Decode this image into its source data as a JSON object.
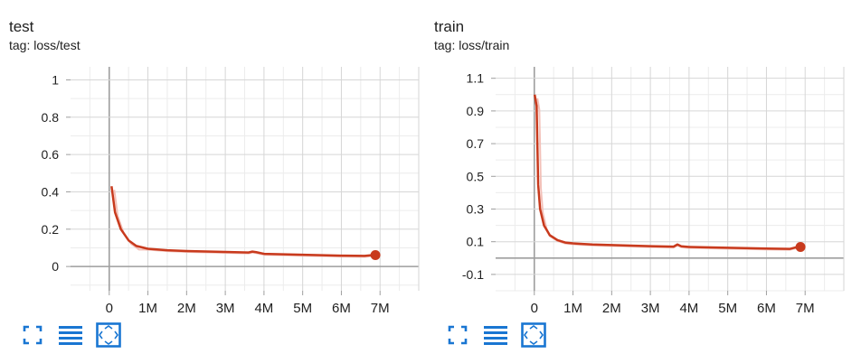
{
  "accent_color": "#c83a1d",
  "smooth_faint_color": "#f3c1b9",
  "toolbar_color": "#1976d2",
  "cards": [
    {
      "title": "test",
      "tag": "tag: loss/test",
      "buttons": [
        "fullscreen-icon",
        "data-list-icon",
        "fit-domain-icon"
      ]
    },
    {
      "title": "train",
      "tag": "tag: loss/train",
      "buttons": [
        "fullscreen-icon",
        "data-list-icon",
        "fit-domain-icon"
      ]
    }
  ],
  "chart_data": [
    {
      "type": "line",
      "title": "test",
      "subtitle": "tag: loss/test",
      "xlim": [
        -1000000,
        8000000
      ],
      "ylim": [
        -0.13,
        1.07
      ],
      "xticks": [
        0,
        1000000,
        2000000,
        3000000,
        4000000,
        5000000,
        6000000,
        7000000
      ],
      "xtick_labels": [
        "0",
        "1M",
        "2M",
        "3M",
        "4M",
        "5M",
        "6M",
        "7M"
      ],
      "yticks": [
        0,
        0.2,
        0.4,
        0.6,
        0.8,
        1
      ],
      "ytick_labels": [
        "0",
        "0.2",
        "0.4",
        "0.6",
        "0.8",
        "1"
      ],
      "grid": true,
      "series": [
        {
          "x": [
            60000,
            150000,
            300000,
            500000,
            700000,
            1000000,
            1500000,
            2000000,
            3000000,
            3600000,
            3700000,
            3800000,
            4000000,
            5000000,
            6000000,
            6600000,
            6750000,
            6880000
          ],
          "y": [
            0.43,
            0.29,
            0.2,
            0.14,
            0.11,
            0.095,
            0.087,
            0.083,
            0.078,
            0.075,
            0.08,
            0.077,
            0.068,
            0.063,
            0.058,
            0.057,
            0.06,
            0.061
          ]
        }
      ]
    },
    {
      "type": "line",
      "title": "train",
      "subtitle": "tag: loss/train",
      "xlim": [
        -1000000,
        8000000
      ],
      "ylim": [
        -0.2,
        1.17
      ],
      "xticks": [
        0,
        1000000,
        2000000,
        3000000,
        4000000,
        5000000,
        6000000,
        7000000
      ],
      "xtick_labels": [
        "0",
        "1M",
        "2M",
        "3M",
        "4M",
        "5M",
        "6M",
        "7M"
      ],
      "yticks": [
        -0.1,
        0.1,
        0.3,
        0.5,
        0.7,
        0.9,
        1.1
      ],
      "ytick_labels": [
        "-0.1",
        "0.1",
        "0.3",
        "0.5",
        "0.7",
        "0.9",
        "1.1"
      ],
      "grid": true,
      "series": [
        {
          "x": [
            10000,
            60000,
            100000,
            150000,
            250000,
            400000,
            600000,
            800000,
            1000000,
            1500000,
            2000000,
            3000000,
            3600000,
            3700000,
            3800000,
            4000000,
            5000000,
            6000000,
            6600000,
            6750000,
            6880000
          ],
          "y": [
            1.0,
            0.93,
            0.45,
            0.3,
            0.2,
            0.14,
            0.11,
            0.095,
            0.09,
            0.083,
            0.08,
            0.073,
            0.07,
            0.083,
            0.072,
            0.068,
            0.063,
            0.058,
            0.056,
            0.065,
            0.068
          ]
        }
      ]
    }
  ]
}
